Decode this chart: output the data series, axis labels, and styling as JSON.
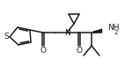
{
  "bg_color": "#ffffff",
  "line_color": "#1a1a1a",
  "line_width": 1.1,
  "figsize": [
    1.42,
    0.92
  ],
  "dpi": 100,
  "S_label": "S",
  "O_label": "O",
  "N_label": "N",
  "NH2_label": "NH",
  "sub2_label": "2"
}
